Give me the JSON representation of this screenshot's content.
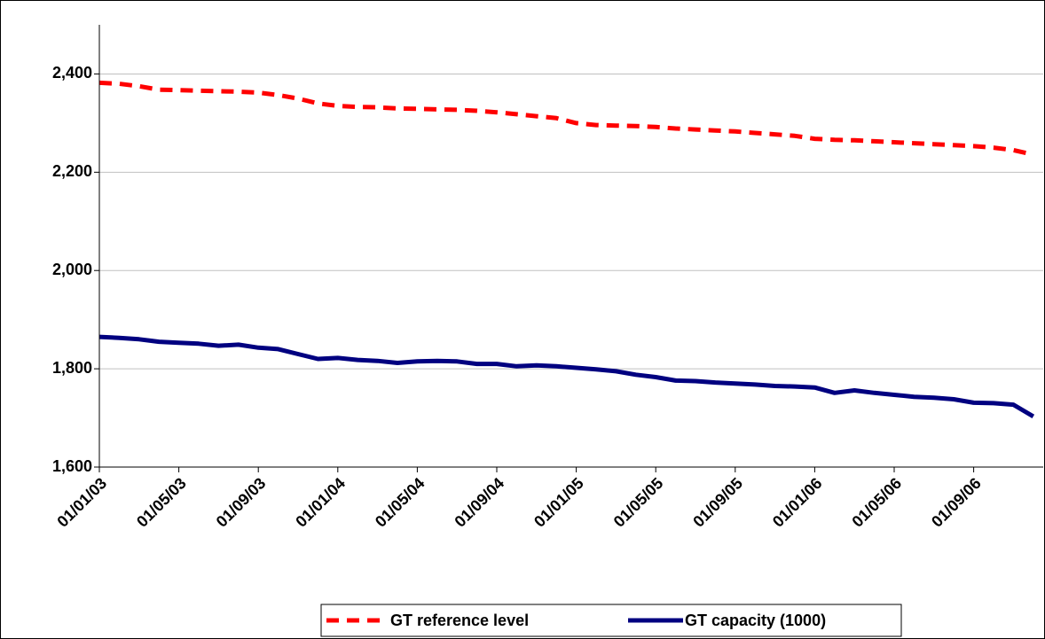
{
  "chart_data": {
    "type": "line",
    "categories": [
      "01/01/03",
      null,
      null,
      null,
      "01/05/03",
      null,
      null,
      null,
      "01/09/03",
      null,
      null,
      null,
      "01/01/04",
      null,
      null,
      null,
      "01/05/04",
      null,
      null,
      null,
      "01/09/04",
      null,
      null,
      null,
      "01/01/05",
      null,
      null,
      null,
      "01/05/05",
      null,
      null,
      null,
      "01/09/05",
      null,
      null,
      null,
      "01/01/06",
      null,
      null,
      null,
      "01/05/06",
      null,
      null,
      null,
      "01/09/06",
      null,
      null,
      null
    ],
    "series": [
      {
        "name": "GT reference level",
        "color": "#ff0000",
        "dashed": true,
        "values": [
          2382,
          2380,
          2375,
          2368,
          2367,
          2366,
          2365,
          2364,
          2362,
          2357,
          2350,
          2340,
          2335,
          2333,
          2332,
          2330,
          2329,
          2328,
          2327,
          2325,
          2322,
          2318,
          2314,
          2310,
          2300,
          2296,
          2295,
          2294,
          2292,
          2289,
          2287,
          2285,
          2283,
          2280,
          2277,
          2274,
          2268,
          2266,
          2265,
          2263,
          2261,
          2259,
          2257,
          2255,
          2253,
          2250,
          2245,
          2236
        ]
      },
      {
        "name": "GT capacity (1000)",
        "color": "#000080",
        "dashed": false,
        "values": [
          1865,
          1863,
          1860,
          1855,
          1853,
          1851,
          1847,
          1849,
          1843,
          1840,
          1830,
          1820,
          1822,
          1818,
          1816,
          1812,
          1815,
          1816,
          1815,
          1810,
          1810,
          1805,
          1807,
          1805,
          1802,
          1799,
          1795,
          1788,
          1783,
          1776,
          1775,
          1772,
          1770,
          1768,
          1765,
          1764,
          1762,
          1751,
          1756,
          1751,
          1747,
          1743,
          1741,
          1738,
          1731,
          1730,
          1727,
          1703
        ]
      }
    ],
    "ylim": [
      1600,
      2500
    ],
    "yticks": [
      {
        "value": 1600,
        "label": "1,600"
      },
      {
        "value": 1800,
        "label": "1,800"
      },
      {
        "value": 2000,
        "label": "2,000"
      },
      {
        "value": 2200,
        "label": "2,200"
      },
      {
        "value": 2400,
        "label": "2,400"
      }
    ],
    "grid": true,
    "legend": "bottom"
  }
}
